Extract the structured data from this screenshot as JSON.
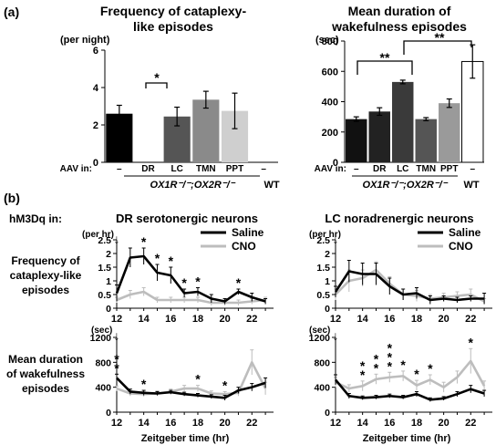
{
  "panel_a_label": "(a)",
  "panel_b_label": "(b)",
  "a1": {
    "title1": "Frequency of cataplexy-",
    "title2": "like episodes",
    "unit": "(per night)",
    "aav_label": "AAV in:",
    "genotype_label": "OX1R⁻/⁻;OX2R⁻/⁻",
    "sig_marks": [
      "*"
    ]
  },
  "a2": {
    "title1": "Mean duration of",
    "title2": "wakefulness episodes",
    "unit": "(sec)",
    "aav_label": "AAV in:",
    "genotype_label": "OX1R⁻/⁻;OX2R⁻/⁻",
    "sig_marks": [
      "**",
      "**"
    ]
  },
  "b": {
    "hm3dq_label": "hM3Dq in:",
    "dr_title": "DR serotonergic neurons",
    "lc_title": "LC noradrenergic neurons",
    "freq_label": [
      "Frequency of",
      "cataplexy-like",
      "episodes"
    ],
    "dur_label": [
      "Mean duration",
      "of wakefulness",
      "episodes"
    ],
    "freq_unit": "(per hr)",
    "dur_unit": "(sec)",
    "xlabel": "Zeitgeber time (hr)",
    "arrow_glyph": "↓",
    "legend": [
      "Saline",
      "CNO"
    ],
    "colors": {
      "saline": "#000000",
      "cno": "#bdbdbd"
    }
  },
  "chart_data": [
    {
      "type": "bar",
      "panel": "a-left",
      "title": "Frequency of cataplexy-like episodes",
      "ylabel": "(per night)",
      "categories": [
        "–",
        "DR",
        "LC",
        "TMN",
        "PPT",
        "–"
      ],
      "group_labels": [
        "OX1R⁻/⁻;OX2R⁻/⁻",
        "WT"
      ],
      "values": [
        2.6,
        0,
        2.45,
        3.35,
        2.75,
        0
      ],
      "errors": [
        0.45,
        0,
        0.5,
        0.45,
        0.95,
        0
      ],
      "colors": [
        "#000000",
        "#ffffff",
        "#555555",
        "#8a8a8a",
        "#cfcfcf",
        "#ffffff"
      ],
      "ylim": [
        0,
        6
      ],
      "yticks": [
        0,
        2,
        4,
        6
      ],
      "significance": [
        "– vs DR: *"
      ]
    },
    {
      "type": "bar",
      "panel": "a-right",
      "title": "Mean duration of wakefulness episodes",
      "ylabel": "(sec)",
      "categories": [
        "–",
        "DR",
        "LC",
        "TMN",
        "PPT",
        "–"
      ],
      "group_labels": [
        "OX1R⁻/⁻;OX2R⁻/⁻",
        "WT"
      ],
      "values": [
        285,
        335,
        530,
        285,
        390,
        665
      ],
      "errors": [
        15,
        25,
        12,
        10,
        28,
        110
      ],
      "colors": [
        "#111111",
        "#222222",
        "#3a3a3a",
        "#555555",
        "#9a9a9a",
        "#ffffff"
      ],
      "ylim": [
        0,
        800
      ],
      "yticks": [
        0,
        200,
        400,
        600,
        800
      ],
      "significance": [
        "– vs LC: **",
        "LC vs WT: **"
      ]
    },
    {
      "type": "line",
      "panel": "b-DR-frequency",
      "title": "DR serotonergic neurons",
      "ylabel": "(per hr)",
      "x": [
        12,
        13,
        14,
        15,
        16,
        17,
        18,
        19,
        20,
        21,
        22,
        23
      ],
      "ylim": [
        0,
        2.5
      ],
      "yticks": [
        0,
        0.5,
        1,
        1.5,
        2,
        2.5
      ],
      "xticks": [
        12,
        14,
        16,
        18,
        20,
        22
      ],
      "series": [
        {
          "name": "Saline",
          "values": [
            0.55,
            1.85,
            1.9,
            1.3,
            1.2,
            0.55,
            0.6,
            0.35,
            0.25,
            0.6,
            0.4,
            0.25
          ],
          "errors": [
            0.3,
            0.35,
            0.3,
            0.3,
            0.3,
            0.15,
            0.15,
            0.15,
            0.1,
            0.1,
            0.15,
            0.1
          ]
        },
        {
          "name": "CNO",
          "values": [
            0.3,
            0.5,
            0.6,
            0.3,
            0.3,
            0.3,
            0.3,
            0.2,
            0.2,
            0.2,
            0.25,
            0.3
          ],
          "errors": [
            0.1,
            0.15,
            0.15,
            0.1,
            0.1,
            0.1,
            0.1,
            0.1,
            0.1,
            0.1,
            0.1,
            0.1
          ]
        }
      ],
      "significance_x": [
        14,
        15,
        16,
        17,
        18,
        21
      ],
      "significance_mark": "*"
    },
    {
      "type": "line",
      "panel": "b-LC-frequency",
      "title": "LC noradrenergic neurons",
      "ylabel": "(per hr)",
      "x": [
        12,
        13,
        14,
        15,
        16,
        17,
        18,
        19,
        20,
        21,
        22,
        23
      ],
      "ylim": [
        0,
        2.5
      ],
      "yticks": [
        0,
        0.5,
        1,
        1.5,
        2,
        2.5
      ],
      "xticks": [
        12,
        14,
        16,
        18,
        20,
        22
      ],
      "series": [
        {
          "name": "Saline",
          "values": [
            0.6,
            1.35,
            1.25,
            1.25,
            0.8,
            0.5,
            0.55,
            0.3,
            0.35,
            0.3,
            0.35,
            0.35
          ],
          "errors": [
            0.2,
            0.4,
            0.4,
            0.4,
            0.3,
            0.2,
            0.2,
            0.15,
            0.1,
            0.1,
            0.1,
            0.2
          ]
        },
        {
          "name": "CNO",
          "values": [
            0.5,
            1.0,
            1.1,
            1.4,
            0.9,
            0.5,
            0.45,
            0.35,
            0.4,
            0.45,
            0.5,
            0.25
          ],
          "errors": [
            0.2,
            0.4,
            0.3,
            0.3,
            0.25,
            0.2,
            0.2,
            0.15,
            0.15,
            0.15,
            0.2,
            0.1
          ]
        }
      ]
    },
    {
      "type": "line",
      "panel": "b-DR-duration",
      "title": "DR serotonergic neurons",
      "ylabel": "(sec)",
      "xlabel": "Zeitgeber time (hr)",
      "x": [
        12,
        13,
        14,
        15,
        16,
        17,
        18,
        19,
        20,
        21,
        22,
        23
      ],
      "ylim": [
        0,
        1200
      ],
      "yticks": [
        0,
        400,
        800,
        1200
      ],
      "xticks": [
        12,
        14,
        16,
        18,
        20,
        22
      ],
      "series": [
        {
          "name": "Saline",
          "values": [
            550,
            330,
            310,
            300,
            320,
            290,
            270,
            250,
            230,
            350,
            400,
            470
          ],
          "errors": [
            60,
            40,
            40,
            30,
            30,
            30,
            30,
            30,
            40,
            50,
            60,
            80
          ]
        },
        {
          "name": "CNO",
          "values": [
            380,
            300,
            290,
            300,
            330,
            380,
            380,
            300,
            290,
            310,
            800,
            380
          ],
          "errors": [
            40,
            40,
            40,
            40,
            40,
            50,
            50,
            40,
            40,
            50,
            200,
            100
          ]
        }
      ],
      "significance": [
        {
          "x": 12,
          "mark": "**"
        },
        {
          "x": 14,
          "mark": "*"
        },
        {
          "x": 18,
          "mark": "*"
        },
        {
          "x": 20,
          "mark": "*"
        }
      ]
    },
    {
      "type": "line",
      "panel": "b-LC-duration",
      "title": "LC noradrenergic neurons",
      "ylabel": "(sec)",
      "xlabel": "Zeitgeber time (hr)",
      "x": [
        12,
        13,
        14,
        15,
        16,
        17,
        18,
        19,
        20,
        21,
        22,
        23
      ],
      "ylim": [
        0,
        1200
      ],
      "yticks": [
        0,
        400,
        800,
        1200
      ],
      "xticks": [
        12,
        14,
        16,
        18,
        20,
        22
      ],
      "series": [
        {
          "name": "Saline",
          "values": [
            520,
            260,
            230,
            240,
            260,
            240,
            290,
            200,
            220,
            290,
            370,
            300
          ],
          "errors": [
            80,
            40,
            30,
            30,
            30,
            30,
            40,
            30,
            30,
            40,
            60,
            50
          ]
        },
        {
          "name": "CNO",
          "values": [
            480,
            380,
            420,
            530,
            560,
            580,
            430,
            520,
            400,
            560,
            820,
            420
          ],
          "errors": [
            80,
            60,
            80,
            80,
            80,
            80,
            80,
            80,
            80,
            100,
            200,
            80
          ]
        }
      ],
      "significance": [
        {
          "x": 14,
          "mark": "**"
        },
        {
          "x": 15,
          "mark": "**"
        },
        {
          "x": 16,
          "mark": "***"
        },
        {
          "x": 17,
          "mark": "*"
        },
        {
          "x": 18,
          "mark": "*"
        },
        {
          "x": 19,
          "mark": "*"
        },
        {
          "x": 22,
          "mark": "*"
        }
      ]
    }
  ]
}
